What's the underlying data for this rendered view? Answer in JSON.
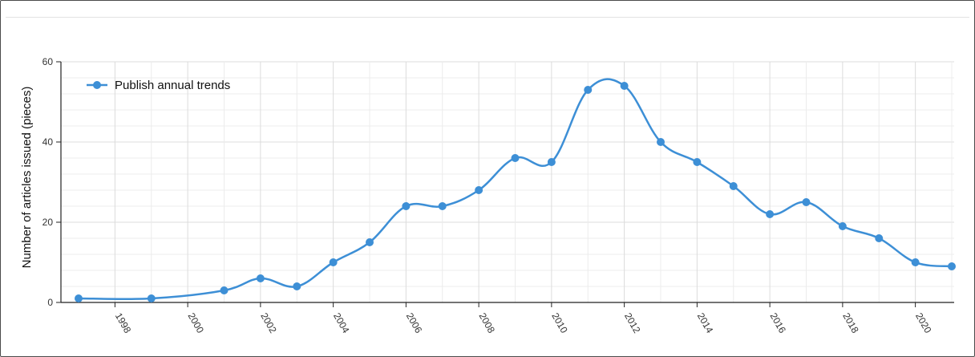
{
  "chart_data": {
    "type": "line",
    "title": "",
    "xlabel": "",
    "ylabel": "Number of articles issued (pieces)",
    "ylim": [
      0,
      60
    ],
    "xlim": [
      1997,
      2021
    ],
    "yticks": [
      0,
      20,
      40,
      60
    ],
    "xticks": [
      1998,
      2000,
      2002,
      2004,
      2006,
      2008,
      2010,
      2012,
      2014,
      2016,
      2018,
      2020
    ],
    "grid": true,
    "legend_position": "top-left",
    "series": [
      {
        "name": "Publish annual trends",
        "color": "#3d8fd6",
        "x": [
          1997,
          1999,
          2001,
          2002,
          2003,
          2004,
          2005,
          2006,
          2007,
          2008,
          2009,
          2010,
          2011,
          2012,
          2013,
          2014,
          2015,
          2016,
          2017,
          2018,
          2019,
          2020,
          2021
        ],
        "y": [
          1,
          1,
          3,
          6,
          4,
          10,
          15,
          24,
          24,
          28,
          36,
          35,
          53,
          54,
          40,
          35,
          29,
          22,
          25,
          19,
          16,
          10,
          9
        ]
      }
    ]
  }
}
